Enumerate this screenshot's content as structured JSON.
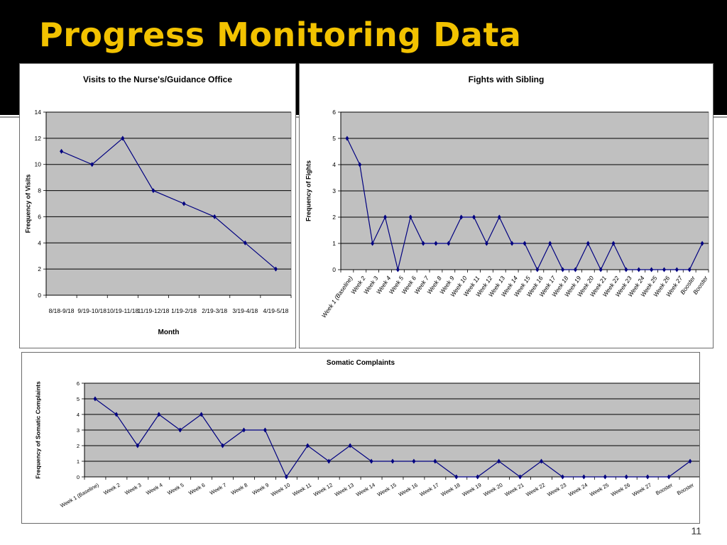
{
  "slide": {
    "title": "Progress Monitoring Data",
    "page_number": "11"
  },
  "colors": {
    "background_band": "#000000",
    "title": "#f2c200",
    "plot_area": "#c0c0c0",
    "series": "#000080"
  },
  "chart_data": [
    {
      "type": "line",
      "title": "Visits to the Nurse's/Guidance Office",
      "xlabel": "Month",
      "ylabel": "Frequency of Visits",
      "categories": [
        "8/18-9/18",
        "9/19-10/18",
        "10/19-11/18",
        "11/19-12/18",
        "1/19-2/18",
        "2/19-3/18",
        "3/19-4/18",
        "4/19-5/18"
      ],
      "series": [
        {
          "values": [
            11,
            10,
            12,
            8,
            7,
            6,
            4,
            2
          ]
        }
      ],
      "ylim": [
        0,
        14
      ],
      "yticks": [
        0,
        2,
        4,
        6,
        8,
        10,
        12,
        14
      ],
      "grid": true
    },
    {
      "type": "line",
      "title": "Fights with Sibling",
      "xlabel": "",
      "ylabel": "Frequency of Fights",
      "categories": [
        "Week 1 (Baseline)",
        "Week 2",
        "Week 3",
        "Week 4",
        "Week 5",
        "Week 6",
        "Week 7",
        "Week 8",
        "Week 9",
        "Week 10",
        "Week 11",
        "Week 12",
        "Week 13",
        "Week 14",
        "Week 15",
        "Week 16",
        "Week 17",
        "Week 18",
        "Week 19",
        "Week 20",
        "Week 21",
        "Week 22",
        "Week 23",
        "Week 24",
        "Week 25",
        "Week 26",
        "Week 27",
        "Booster",
        "Booster"
      ],
      "series": [
        {
          "values": [
            5,
            4,
            1,
            2,
            0,
            2,
            1,
            1,
            1,
            2,
            2,
            1,
            2,
            1,
            1,
            0,
            1,
            0,
            0,
            1,
            0,
            1,
            0,
            0,
            0,
            0,
            0,
            0,
            1
          ]
        }
      ],
      "ylim": [
        0,
        6
      ],
      "yticks": [
        0,
        1,
        2,
        3,
        4,
        5,
        6
      ],
      "grid": true
    },
    {
      "type": "line",
      "title": "Somatic Complaints",
      "xlabel": "",
      "ylabel": "Frequency of Somatic Complaints",
      "categories": [
        "Week 1 (Baseline)",
        "Week 2",
        "Week 3",
        "Week 4",
        "Week 5",
        "Week 6",
        "Week 7",
        "Week 8",
        "Week 9",
        "Week 10",
        "Week 11",
        "Week 12",
        "Week 13",
        "Week 14",
        "Week 15",
        "Week 16",
        "Week 17",
        "Week 18",
        "Week 19",
        "Week 20",
        "Week 21",
        "Week 22",
        "Week 23",
        "Week 24",
        "Week 25",
        "Week 26",
        "Week 27",
        "Booster",
        "Booster"
      ],
      "series": [
        {
          "values": [
            5,
            4,
            2,
            4,
            3,
            4,
            2,
            3,
            3,
            0,
            2,
            1,
            2,
            1,
            1,
            1,
            1,
            0,
            0,
            1,
            0,
            1,
            0,
            0,
            0,
            0,
            0,
            0,
            1
          ]
        }
      ],
      "ylim": [
        0,
        6
      ],
      "yticks": [
        0,
        1,
        2,
        3,
        4,
        5,
        6
      ],
      "grid": true
    }
  ]
}
